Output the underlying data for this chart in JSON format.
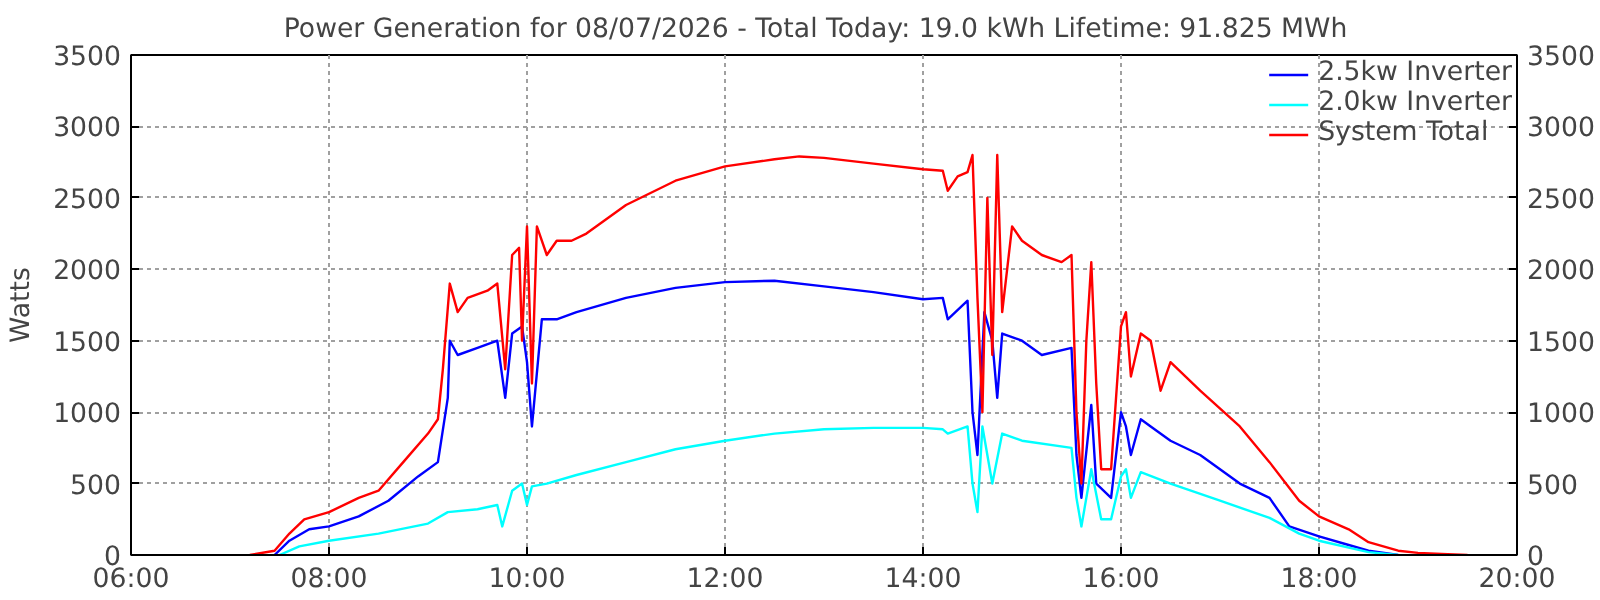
{
  "chart_data": {
    "type": "line",
    "title": "Power Generation for 08/07/2026 - Total Today: 19.0 kWh   Lifetime: 91.825 MWh",
    "ylabel": "Watts",
    "xlim": [
      6,
      20
    ],
    "xticks": [
      {
        "value": 6,
        "label": "06:00"
      },
      {
        "value": 8,
        "label": "08:00"
      },
      {
        "value": 10,
        "label": "10:00"
      },
      {
        "value": 12,
        "label": "12:00"
      },
      {
        "value": 14,
        "label": "14:00"
      },
      {
        "value": 16,
        "label": "16:00"
      },
      {
        "value": 18,
        "label": "18:00"
      },
      {
        "value": 20,
        "label": "20:00"
      }
    ],
    "ylim": [
      0,
      3500
    ],
    "yticks": [
      0,
      500,
      1000,
      1500,
      2000,
      2500,
      3000,
      3500
    ],
    "y2lim": [
      0,
      3500
    ],
    "y2ticks": [
      0,
      500,
      1000,
      1500,
      2000,
      2500,
      3000,
      3500
    ],
    "grid": true,
    "legend": "top right",
    "line_style": "solid",
    "marker": "none",
    "series": [
      {
        "name": "2.5kw Inverter",
        "color": "#0000ff",
        "x": [
          7.45,
          7.6,
          7.8,
          8.0,
          8.3,
          8.6,
          8.9,
          9.1,
          9.2,
          9.22,
          9.3,
          9.5,
          9.7,
          9.78,
          9.85,
          9.95,
          10.0,
          10.05,
          10.15,
          10.3,
          10.5,
          11.0,
          11.5,
          12.0,
          12.5,
          13.0,
          13.5,
          14.0,
          14.2,
          14.25,
          14.45,
          14.5,
          14.55,
          14.62,
          14.7,
          14.75,
          14.8,
          15.0,
          15.2,
          15.5,
          15.55,
          15.6,
          15.7,
          15.75,
          15.9,
          16.0,
          16.05,
          16.1,
          16.2,
          16.3,
          16.5,
          16.8,
          17.2,
          17.5,
          17.7,
          18.0,
          18.3,
          18.5,
          18.8
        ],
        "values": [
          0,
          100,
          180,
          200,
          270,
          380,
          550,
          650,
          1100,
          1500,
          1400,
          1450,
          1500,
          1100,
          1550,
          1600,
          1350,
          900,
          1650,
          1650,
          1700,
          1800,
          1870,
          1910,
          1920,
          1880,
          1840,
          1790,
          1800,
          1650,
          1780,
          1000,
          700,
          1700,
          1500,
          1100,
          1550,
          1500,
          1400,
          1450,
          700,
          400,
          1050,
          500,
          400,
          1000,
          900,
          700,
          950,
          900,
          800,
          700,
          500,
          400,
          200,
          130,
          70,
          30,
          0
        ]
      },
      {
        "name": "2.0kw Inverter",
        "color": "#00ffff",
        "x": [
          7.5,
          7.7,
          8.0,
          8.5,
          9.0,
          9.2,
          9.5,
          9.7,
          9.75,
          9.85,
          9.95,
          10.0,
          10.05,
          10.2,
          10.5,
          11.0,
          11.5,
          12.0,
          12.5,
          13.0,
          13.5,
          14.0,
          14.2,
          14.25,
          14.45,
          14.5,
          14.55,
          14.6,
          14.7,
          14.8,
          15.0,
          15.5,
          15.55,
          15.6,
          15.7,
          15.8,
          15.9,
          16.0,
          16.05,
          16.1,
          16.2,
          16.5,
          17.0,
          17.5,
          17.8,
          18.0,
          18.5,
          18.8
        ],
        "values": [
          0,
          60,
          100,
          150,
          220,
          300,
          320,
          350,
          200,
          450,
          500,
          350,
          480,
          500,
          560,
          650,
          740,
          800,
          850,
          880,
          890,
          890,
          880,
          850,
          900,
          500,
          300,
          900,
          500,
          850,
          800,
          750,
          400,
          200,
          600,
          250,
          250,
          550,
          600,
          400,
          580,
          500,
          380,
          260,
          150,
          100,
          20,
          0
        ]
      },
      {
        "name": "System Total",
        "color": "#ff0000",
        "x": [
          7.2,
          7.45,
          7.6,
          7.75,
          8.0,
          8.3,
          8.5,
          8.75,
          9.0,
          9.1,
          9.15,
          9.22,
          9.3,
          9.4,
          9.6,
          9.7,
          9.78,
          9.85,
          9.92,
          9.95,
          10.0,
          10.05,
          10.1,
          10.2,
          10.3,
          10.45,
          10.6,
          11.0,
          11.5,
          12.0,
          12.5,
          12.75,
          13.0,
          13.5,
          14.0,
          14.2,
          14.25,
          14.35,
          14.45,
          14.5,
          14.55,
          14.6,
          14.65,
          14.7,
          14.75,
          14.8,
          14.9,
          15.0,
          15.2,
          15.4,
          15.5,
          15.55,
          15.6,
          15.65,
          15.7,
          15.75,
          15.8,
          15.9,
          16.0,
          16.05,
          16.1,
          16.2,
          16.3,
          16.4,
          16.5,
          16.8,
          17.2,
          17.5,
          17.8,
          18.0,
          18.3,
          18.5,
          18.8,
          19.0,
          19.3,
          19.5
        ],
        "values": [
          0,
          30,
          150,
          250,
          300,
          400,
          450,
          650,
          850,
          950,
          1300,
          1900,
          1700,
          1800,
          1850,
          1900,
          1300,
          2100,
          2150,
          1500,
          2300,
          1200,
          2300,
          2100,
          2200,
          2200,
          2250,
          2450,
          2620,
          2720,
          2770,
          2790,
          2780,
          2740,
          2700,
          2690,
          2550,
          2650,
          2680,
          2800,
          1800,
          1000,
          2500,
          1400,
          2800,
          1700,
          2300,
          2200,
          2100,
          2050,
          2100,
          1000,
          500,
          1500,
          2050,
          1200,
          600,
          600,
          1600,
          1700,
          1250,
          1550,
          1500,
          1150,
          1350,
          1150,
          900,
          650,
          380,
          270,
          180,
          90,
          30,
          15,
          5,
          0
        ]
      }
    ]
  }
}
